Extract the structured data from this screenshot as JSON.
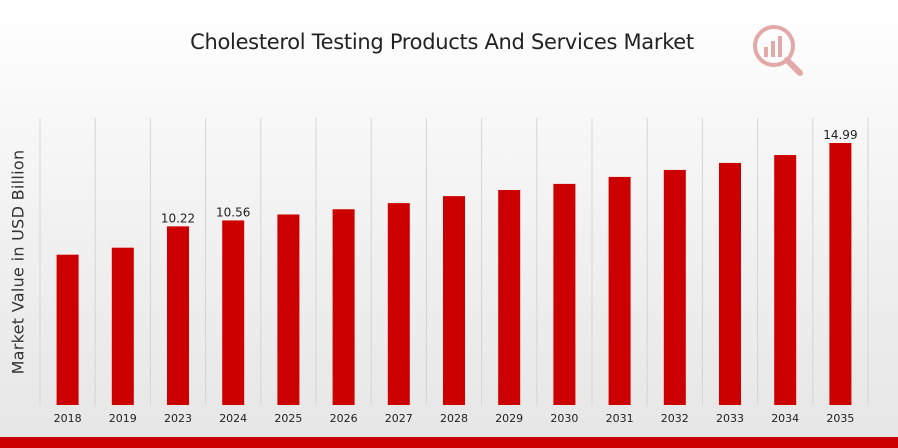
{
  "chart_data": {
    "type": "bar",
    "title": "Cholesterol Testing Products And Services Market",
    "xlabel": "",
    "ylabel": "Market Value in USD Billion",
    "categories": [
      "2018",
      "2019",
      "2023",
      "2024",
      "2025",
      "2026",
      "2027",
      "2028",
      "2029",
      "2030",
      "2031",
      "2032",
      "2033",
      "2034",
      "2035"
    ],
    "series": [
      {
        "values": [
          8.6,
          9.0,
          10.22,
          10.56,
          10.9,
          11.2,
          11.55,
          11.95,
          12.3,
          12.65,
          13.05,
          13.45,
          13.85,
          14.3,
          14.99
        ]
      }
    ],
    "data_labels": {
      "2023": "10.22",
      "2024": "10.56",
      "2035": "14.99"
    },
    "ylim": [
      0,
      16
    ],
    "grid": "vertical",
    "legend": "none",
    "colors": {
      "bar": "#cc0000",
      "grid": "#d4d4d4",
      "accent": "#cc0000"
    }
  },
  "logo_icon": "market-research-logo-icon"
}
